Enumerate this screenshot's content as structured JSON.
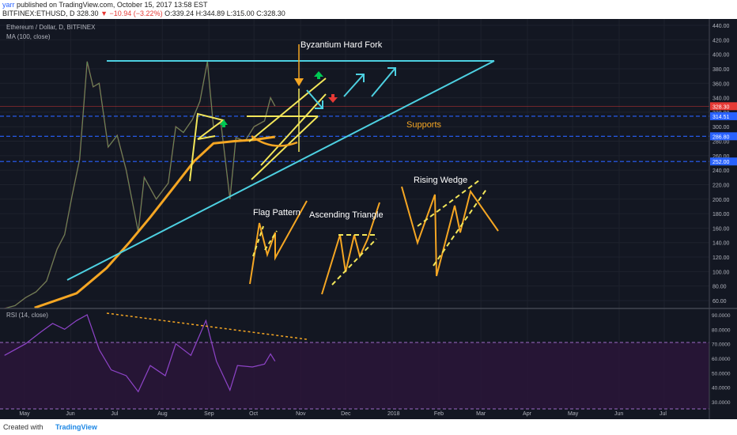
{
  "header": {
    "username": "yarr",
    "published_on": "published on TradingView.com, October 15, 2017 13:58 EST",
    "symbol": "BITFINEX:ETHUSD, D",
    "last_price": "328.30",
    "change": "−10.94 (−3.22%)",
    "ohlc": "O:339.24 H:344.89 L:315.00 C:328.30"
  },
  "footer": {
    "created_with": "Created with",
    "brand": "TradingView"
  },
  "chart_data": {
    "type": "line",
    "title": "Ethereum / Dollar, D, BITFINEX",
    "indicator_label": "MA (100, close)",
    "rsi_label": "RSI (14, close)",
    "price_axis": {
      "ticks": [
        60,
        80,
        100,
        120,
        140,
        160,
        180,
        200,
        220,
        240,
        260,
        280,
        300,
        320,
        340,
        360,
        380,
        400,
        420,
        440
      ],
      "min": 50,
      "max": 445
    },
    "rsi_axis": {
      "ticks": [
        "30.0000",
        "40.0000",
        "50.0000",
        "60.0000",
        "70.0000",
        "80.0000",
        "90.0000"
      ],
      "min": 27,
      "max": 96
    },
    "x_labels": [
      "May",
      "Jun",
      "Jul",
      "Aug",
      "Sep",
      "Oct",
      "Nov",
      "Dec",
      "2018",
      "Feb",
      "Mar",
      "Apr",
      "May",
      "Jun",
      "Jul"
    ],
    "price_labels": [
      {
        "text": "328.30",
        "value": 328.3,
        "color": "#e53935"
      },
      {
        "text": "314.51",
        "value": 314.51,
        "color": "#2962ff"
      },
      {
        "text": "286.80",
        "value": 286.8,
        "color": "#2962ff"
      },
      {
        "text": "252.00",
        "value": 252.0,
        "color": "#2962ff"
      }
    ],
    "support_levels": [
      314.51,
      286.8,
      252.0
    ],
    "price_path": [
      [
        "2017-04-18",
        49
      ],
      [
        "2017-04-25",
        53
      ],
      [
        "2017-05-02",
        64
      ],
      [
        "2017-05-09",
        72
      ],
      [
        "2017-05-16",
        87
      ],
      [
        "2017-05-23",
        131
      ],
      [
        "2017-05-28",
        151
      ],
      [
        "2017-06-02",
        205
      ],
      [
        "2017-06-07",
        255
      ],
      [
        "2017-06-12",
        390
      ],
      [
        "2017-06-16",
        355
      ],
      [
        "2017-06-20",
        360
      ],
      [
        "2017-06-26",
        272
      ],
      [
        "2017-07-02",
        288
      ],
      [
        "2017-07-08",
        240
      ],
      [
        "2017-07-11",
        208
      ],
      [
        "2017-07-16",
        155
      ],
      [
        "2017-07-20",
        230
      ],
      [
        "2017-07-28",
        200
      ],
      [
        "2017-08-05",
        222
      ],
      [
        "2017-08-10",
        300
      ],
      [
        "2017-08-15",
        292
      ],
      [
        "2017-08-21",
        310
      ],
      [
        "2017-08-26",
        335
      ],
      [
        "2017-08-31",
        390
      ],
      [
        "2017-09-04",
        300
      ],
      [
        "2017-09-09",
        305
      ],
      [
        "2017-09-15",
        200
      ],
      [
        "2017-09-19",
        285
      ],
      [
        "2017-09-25",
        280
      ],
      [
        "2017-10-01",
        300
      ],
      [
        "2017-10-08",
        308
      ],
      [
        "2017-10-12",
        340
      ],
      [
        "2017-10-15",
        328.3
      ]
    ],
    "ma_path": [
      [
        "2017-05-08",
        50
      ],
      [
        "2017-06-05",
        70
      ],
      [
        "2017-06-25",
        105
      ],
      [
        "2017-07-10",
        140
      ],
      [
        "2017-07-24",
        175
      ],
      [
        "2017-08-07",
        212
      ],
      [
        "2017-08-22",
        252
      ],
      [
        "2017-09-04",
        277
      ],
      [
        "2017-09-18",
        280
      ],
      [
        "2017-10-01",
        282
      ],
      [
        "2017-10-15",
        286
      ]
    ],
    "rsi_path": [
      [
        "2017-04-18",
        62
      ],
      [
        "2017-05-02",
        70
      ],
      [
        "2017-05-12",
        78
      ],
      [
        "2017-05-20",
        84
      ],
      [
        "2017-05-28",
        80
      ],
      [
        "2017-06-05",
        86
      ],
      [
        "2017-06-12",
        90
      ],
      [
        "2017-06-20",
        66
      ],
      [
        "2017-06-28",
        52
      ],
      [
        "2017-07-08",
        48
      ],
      [
        "2017-07-16",
        37
      ],
      [
        "2017-07-24",
        55
      ],
      [
        "2017-08-03",
        48
      ],
      [
        "2017-08-10",
        70
      ],
      [
        "2017-08-20",
        62
      ],
      [
        "2017-08-30",
        86
      ],
      [
        "2017-09-06",
        58
      ],
      [
        "2017-09-15",
        38
      ],
      [
        "2017-09-20",
        55
      ],
      [
        "2017-09-30",
        54
      ],
      [
        "2017-10-08",
        56
      ],
      [
        "2017-10-12",
        63
      ],
      [
        "2017-10-15",
        58
      ]
    ],
    "annotations": [
      {
        "text": "Byzantium Hard Fork",
        "color": "#ffffff"
      },
      {
        "text": "Supports",
        "color": "#f5a623"
      },
      {
        "text": "Rising Wedge",
        "color": "#ffffff"
      },
      {
        "text": "Flag Pattern",
        "color": "#ffffff"
      },
      {
        "text": "Ascending Triangle",
        "color": "#ffffff"
      }
    ]
  }
}
